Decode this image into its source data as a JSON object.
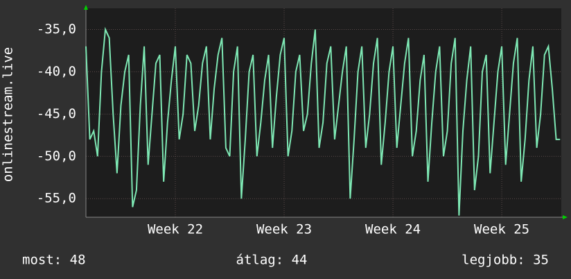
{
  "chart_data": {
    "type": "line",
    "y_label": "onlinestream.live",
    "x": [
      -5.75,
      -5.5,
      -5.25,
      -5,
      -4.75,
      -4.5,
      -4.25,
      -4,
      -3.75,
      -3.5,
      -3.25,
      -3,
      -2.75,
      -2.5,
      -2.25,
      -2,
      -1.75,
      -1.5,
      -1.25,
      -1,
      -0.75,
      -0.5,
      -0.25,
      0,
      0.25,
      0.5,
      0.75,
      1,
      1.25,
      1.5,
      1.75,
      2,
      2.25,
      2.5,
      2.75,
      3,
      3.25,
      3.5,
      3.75,
      4,
      4.25,
      4.5,
      4.75,
      5,
      5.25,
      5.5,
      5.75,
      6,
      6.25,
      6.5,
      6.75,
      7,
      7.25,
      7.5,
      7.75,
      8,
      8.25,
      8.5,
      8.75,
      9,
      9.25,
      9.5,
      9.75,
      10,
      10.25,
      10.5,
      10.75,
      11,
      11.25,
      11.5,
      11.75,
      12,
      12.25,
      12.5,
      12.75,
      13,
      13.25,
      13.5,
      13.75,
      14,
      14.25,
      14.5,
      14.75,
      15,
      15.25,
      15.5,
      15.75,
      16,
      16.25,
      16.5,
      16.75,
      17,
      17.25,
      17.5,
      17.75,
      18,
      18.25,
      18.5,
      18.75,
      19,
      19.25,
      19.5,
      19.75,
      20,
      20.25,
      20.5,
      20.75,
      21,
      21.25,
      21.5,
      21.75,
      22,
      22.25,
      22.5,
      22.75,
      23,
      23.25,
      23.5,
      23.75,
      24,
      24.25,
      24.5,
      24.75
    ],
    "series": [
      {
        "name": null,
        "color": "#7ee8b4",
        "values": [
          -37,
          -48,
          -47,
          -50,
          -40,
          -35,
          -36,
          -45,
          -52,
          -44,
          -40,
          -38,
          -56,
          -54,
          -44,
          -37,
          -51,
          -45,
          -39,
          -38,
          -53,
          -46,
          -41,
          -37,
          -48,
          -45,
          -38,
          -39,
          -47,
          -44,
          -39,
          -37,
          -48,
          -42,
          -38,
          -36,
          -49,
          -50,
          -40,
          -37,
          -55,
          -48,
          -40,
          -38,
          -50,
          -46,
          -41,
          -38,
          -49,
          -43,
          -38,
          -36,
          -50,
          -47,
          -40,
          -38,
          -47,
          -45,
          -39,
          -35,
          -49,
          -46,
          -39,
          -37,
          -48,
          -44,
          -40,
          -37,
          -55,
          -48,
          -40,
          -37,
          -49,
          -45,
          -39,
          -36,
          -51,
          -46,
          -40,
          -37,
          -49,
          -44,
          -39,
          -36,
          -50,
          -47,
          -41,
          -38,
          -53,
          -46,
          -40,
          -37,
          -50,
          -47,
          -39,
          -36,
          -57,
          -47,
          -41,
          -37,
          -54,
          -50,
          -40,
          -38,
          -52,
          -46,
          -40,
          -37,
          -51,
          -45,
          -39,
          -36,
          -53,
          -48,
          -41,
          -37,
          -49,
          -45,
          -38,
          -37,
          -42,
          -48,
          -48
        ]
      }
    ],
    "xlim": [
      -5.75,
      24.83
    ],
    "xticks": [
      {
        "value": 0,
        "label": "Week 22"
      },
      {
        "value": 7,
        "label": "Week 23"
      },
      {
        "value": 14,
        "label": "Week 24"
      },
      {
        "value": 21,
        "label": "Week 25"
      }
    ],
    "ylim": [
      -57.2,
      -32.5
    ],
    "yticks": [
      {
        "value": -35,
        "label": "-35,0"
      },
      {
        "value": -40,
        "label": "-40,0"
      },
      {
        "value": -45,
        "label": "-45,0"
      },
      {
        "value": -50,
        "label": "-50,0"
      },
      {
        "value": -55,
        "label": "-55,0"
      }
    ],
    "grid": true,
    "footer": {
      "current": "most: 48",
      "average": "átlag: 44",
      "best": "legjobb: 35"
    }
  }
}
